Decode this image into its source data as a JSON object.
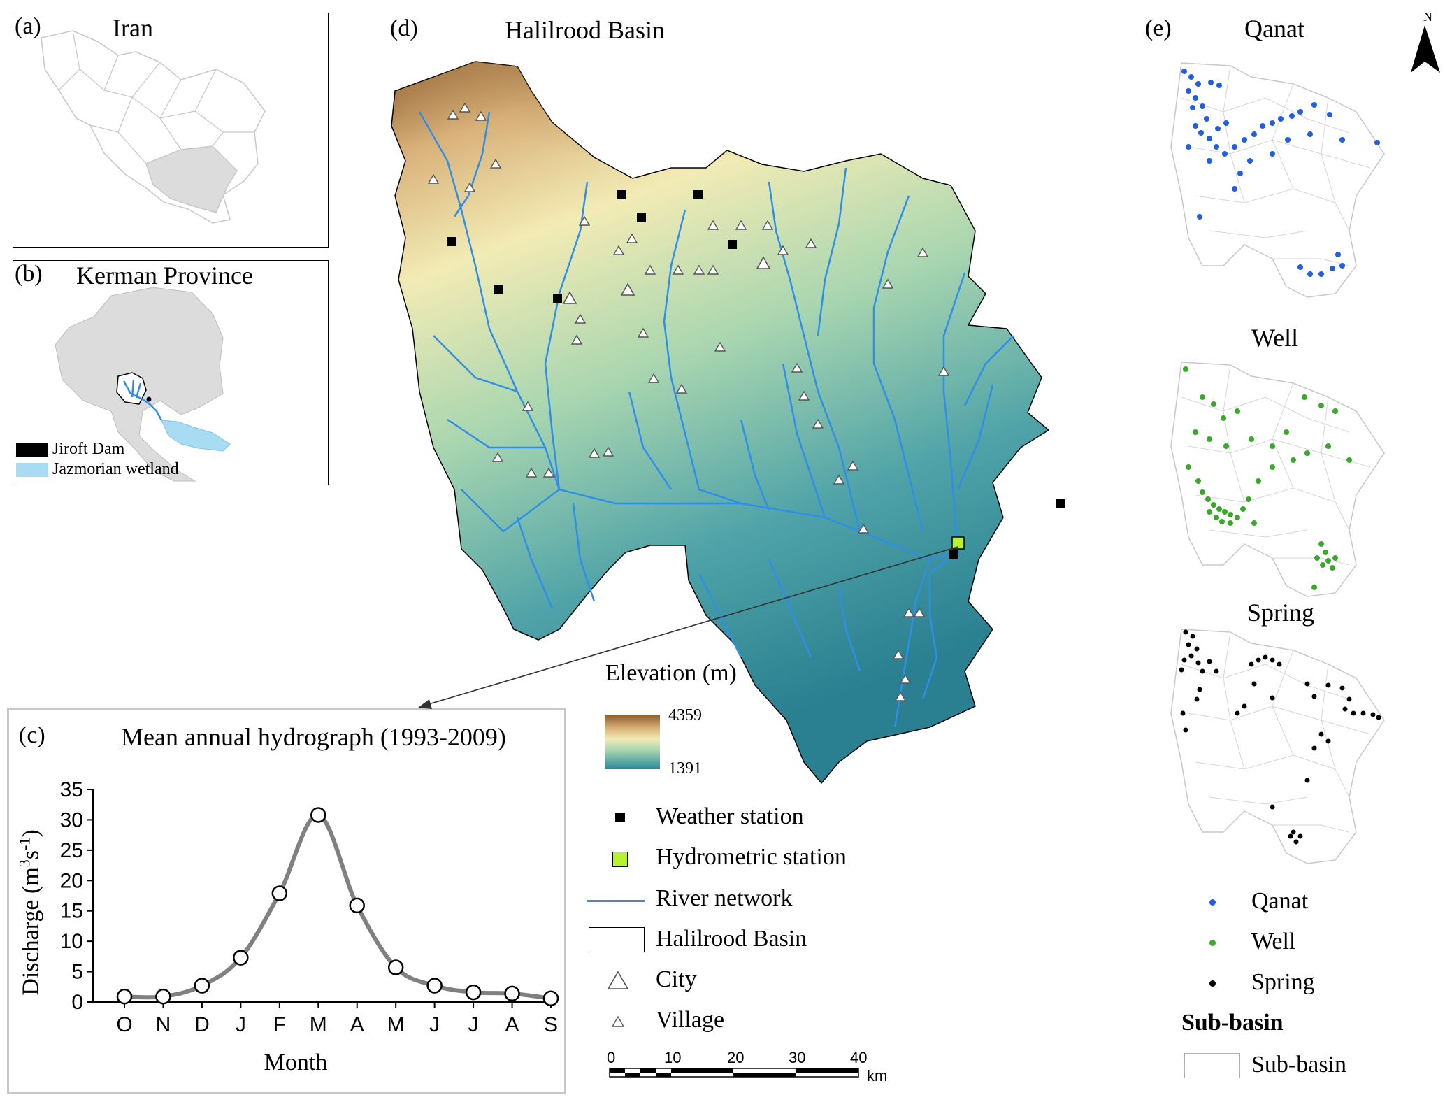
{
  "panels": {
    "a": {
      "letter": "(a)",
      "title": "Iran"
    },
    "b": {
      "letter": "(b)",
      "title": "Kerman Province",
      "legend": [
        {
          "label": "Jiroft Dam",
          "color": "#000000"
        },
        {
          "label": "Jazmorian wetland",
          "color": "#a8dcf2"
        }
      ]
    },
    "c": {
      "letter": "(c)",
      "title": "Mean annual hydrograph (1993-2009)"
    },
    "d": {
      "letter": "(d)",
      "title": "Halilrood Basin"
    },
    "e": {
      "letter": "(e)",
      "sub_titles": [
        "Qanat",
        "Well",
        "Spring"
      ]
    }
  },
  "elevation_legend": {
    "title": "Elevation (m)",
    "max": "4359",
    "min": "1391",
    "color_high": "#8b5a2b",
    "color_mid": "#f2ebb5",
    "color_low": "#2a8a9a"
  },
  "map_legend": {
    "weather_station": "Weather station",
    "hydrometric_station": "Hydrometric station",
    "river_network": "River network",
    "basin": "Halilrood Basin",
    "city": "City",
    "village": "Village"
  },
  "scale_bar": {
    "ticks": [
      "0",
      "10",
      "20",
      "30",
      "40"
    ],
    "unit": "km"
  },
  "north_arrow": {
    "label": "N"
  },
  "sources_legend": {
    "qanat": {
      "label": "Qanat",
      "color": "#1f5fe0"
    },
    "well": {
      "label": "Well",
      "color": "#3aa82a"
    },
    "spring": {
      "label": "Spring",
      "color": "#000000"
    },
    "heading": "Sub-basin",
    "sub_basin": "Sub-basin"
  },
  "colors": {
    "river": "#2f8fe8",
    "hydrometric": "#b7f22e",
    "frame": "#c8c8c8",
    "curve": "#808080"
  },
  "chart_data": {
    "type": "line",
    "title": "Mean annual hydrograph (1993-2009)",
    "xlabel": "Month",
    "ylabel": "Discharge (m3s-1)",
    "ylabel_main": "Discharge (m",
    "ylabel_sup1": "3",
    "ylabel_mid": "s",
    "ylabel_sup2": "-1",
    "ylabel_end": ")",
    "categories": [
      "O",
      "N",
      "D",
      "J",
      "F",
      "M",
      "A",
      "M",
      "J",
      "J",
      "A",
      "S"
    ],
    "values": [
      0.9,
      0.9,
      2.7,
      7.3,
      17.9,
      30.8,
      15.9,
      5.7,
      2.7,
      1.6,
      1.4,
      0.6
    ],
    "ylim": [
      0,
      35
    ],
    "yticks": [
      "0",
      "5",
      "10",
      "15",
      "20",
      "25",
      "30",
      "35"
    ],
    "grid": false
  }
}
